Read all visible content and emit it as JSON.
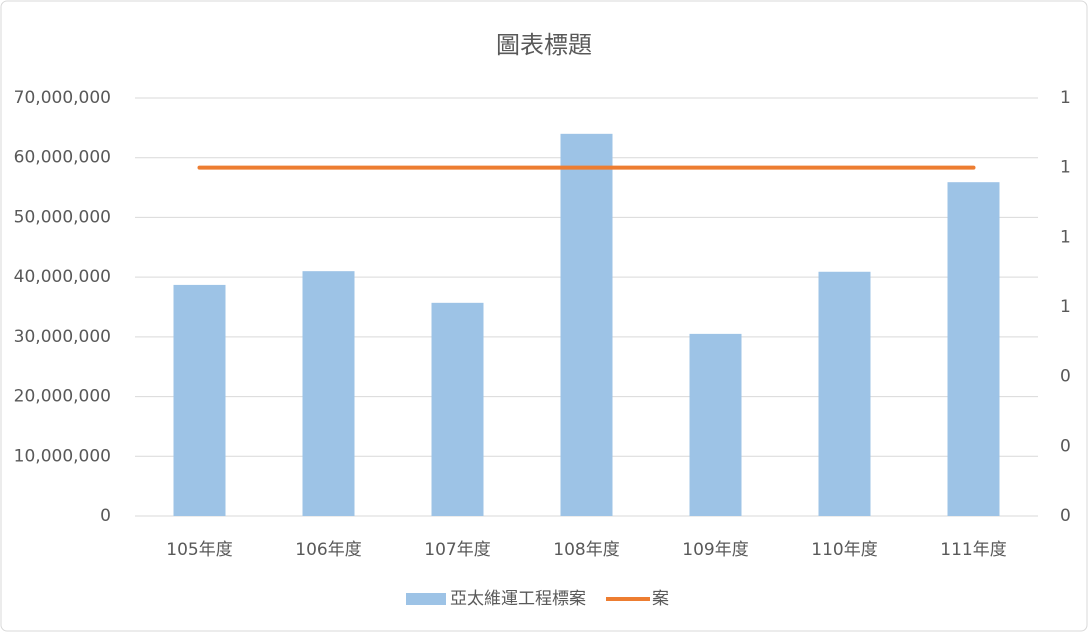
{
  "chart_data": {
    "type": "bar",
    "title": "圖表標題",
    "categories": [
      "105年度",
      "106年度",
      "107年度",
      "108年度",
      "109年度",
      "110年度",
      "111年度"
    ],
    "series": [
      {
        "name": "亞太維運工程標案",
        "color": "#9dc3e6",
        "type": "bar",
        "values": [
          38700000,
          41000000,
          35700000,
          64000000,
          30500000,
          40900000,
          55900000
        ]
      },
      {
        "name": "案",
        "color": "#ed7d31",
        "type": "line",
        "axis": "y2",
        "values": [
          1,
          1,
          1,
          1,
          1,
          1,
          1
        ]
      }
    ],
    "ylim": [
      0,
      70000000
    ],
    "yticks": [
      0,
      {
        "value": 10000000,
        "label": "10,000,000"
      },
      {
        "value": 20000000,
        "label": "20,000,000"
      },
      {
        "value": 30000000,
        "label": "30,000,000"
      },
      {
        "value": 40000000,
        "label": "40,000,000"
      },
      {
        "value": 50000000,
        "label": "50,000,000"
      },
      {
        "value": 60000000,
        "label": "60,000,000"
      },
      {
        "value": 70000000,
        "label": "70,000,000"
      }
    ],
    "y2lim": [
      0,
      1.2
    ],
    "y2ticks": [
      0,
      {
        "value": 0.2,
        "label": "0"
      },
      {
        "value": 0.4,
        "label": "0"
      },
      {
        "value": 0.6,
        "label": "1"
      },
      {
        "value": 0.8,
        "label": "1"
      },
      {
        "value": 1,
        "label": "1"
      },
      {
        "value": 1.2,
        "label": "1"
      }
    ],
    "grid": true,
    "legend": "bottom"
  }
}
